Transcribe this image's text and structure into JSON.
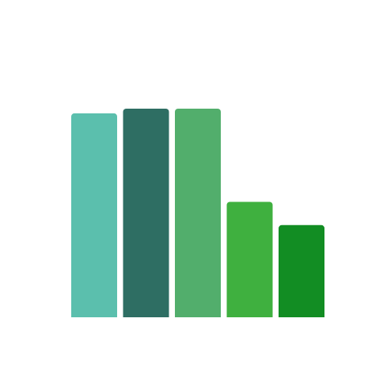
{
  "chart_data": {
    "type": "bar",
    "categories": [
      "",
      "",
      "",
      "",
      ""
    ],
    "values": [
      100,
      102.3,
      102.3,
      56.6,
      45.2
    ],
    "colors": [
      "#5bbfad",
      "#2e6e63",
      "#52ae6c",
      "#3fb03f",
      "#128d23"
    ],
    "title": "",
    "xlabel": "",
    "ylabel": "",
    "ylim": [
      0,
      102.3
    ],
    "grid": false,
    "legend": "none"
  }
}
